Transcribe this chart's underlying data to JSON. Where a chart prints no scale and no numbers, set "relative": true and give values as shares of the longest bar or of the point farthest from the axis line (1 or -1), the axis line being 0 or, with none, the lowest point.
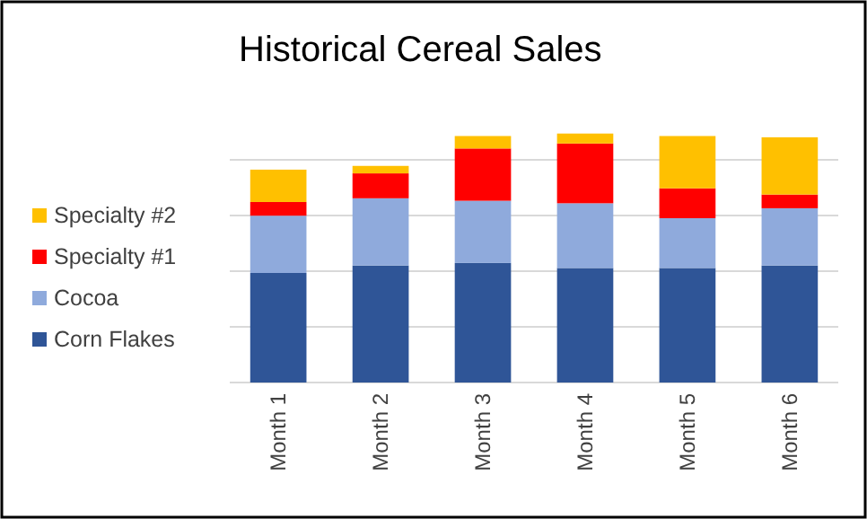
{
  "chart_data": {
    "type": "bar",
    "title": "Historical Cereal Sales",
    "relative": true,
    "stacked": true,
    "grid": true,
    "legend": "left",
    "categories": [
      "Month 1",
      "Month 2",
      "Month 3",
      "Month 4",
      "Month 5",
      "Month 6"
    ],
    "series": [
      {
        "name": "Corn Flakes",
        "color": "#2f5597",
        "values": [
          0.44,
          0.47,
          0.48,
          0.46,
          0.46,
          0.47
        ]
      },
      {
        "name": "Cocoa",
        "color": "#8faadc",
        "values": [
          0.23,
          0.27,
          0.25,
          0.26,
          0.2,
          0.23
        ]
      },
      {
        "name": "Specialty #1",
        "color": "#ff0000",
        "values": [
          0.055,
          0.1,
          0.21,
          0.24,
          0.12,
          0.055
        ]
      },
      {
        "name": "Specialty #2",
        "color": "#ffc000",
        "values": [
          0.13,
          0.03,
          0.05,
          0.04,
          0.21,
          0.23
        ]
      }
    ]
  }
}
